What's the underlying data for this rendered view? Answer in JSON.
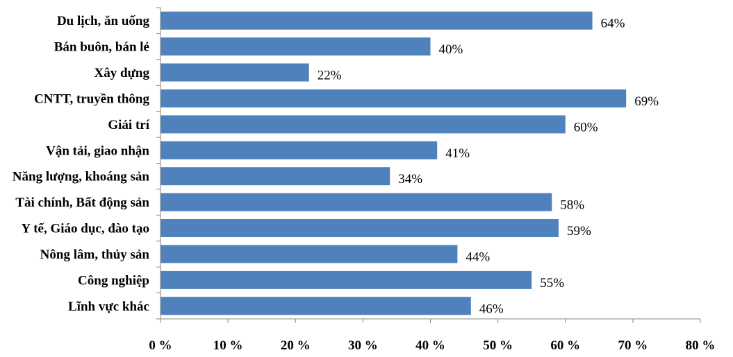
{
  "chart_data": {
    "type": "bar",
    "orientation": "horizontal",
    "categories": [
      "Du lịch, ăn uống",
      "Bán buôn, bán lẻ",
      "Xây dựng",
      "CNTT, truyền thông",
      "Giải trí",
      "Vận tải, giao nhận",
      "Năng lượng, khoáng sản",
      "Tài chính, Bất động sản",
      "Y tế, Giáo dục, đào tạo",
      "Nông lâm, thủy sản",
      "Công nghiệp",
      "Lĩnh vực khác"
    ],
    "values": [
      64,
      40,
      22,
      69,
      60,
      41,
      34,
      58,
      59,
      44,
      55,
      46
    ],
    "data_labels": [
      "64%",
      "40%",
      "22%",
      "69%",
      "60%",
      "41%",
      "34%",
      "58%",
      "59%",
      "44%",
      "55%",
      "46%"
    ],
    "xlim": [
      0,
      80
    ],
    "x_ticks": [
      0,
      10,
      20,
      30,
      40,
      50,
      60,
      70,
      80
    ],
    "x_tick_labels": [
      "0 %",
      "10 %",
      "20 %",
      "30 %",
      "40 %",
      "50 %",
      "60 %",
      "70 %",
      "80 %"
    ],
    "bar_color": "#4f81bd",
    "grid": false,
    "legend": "none"
  }
}
